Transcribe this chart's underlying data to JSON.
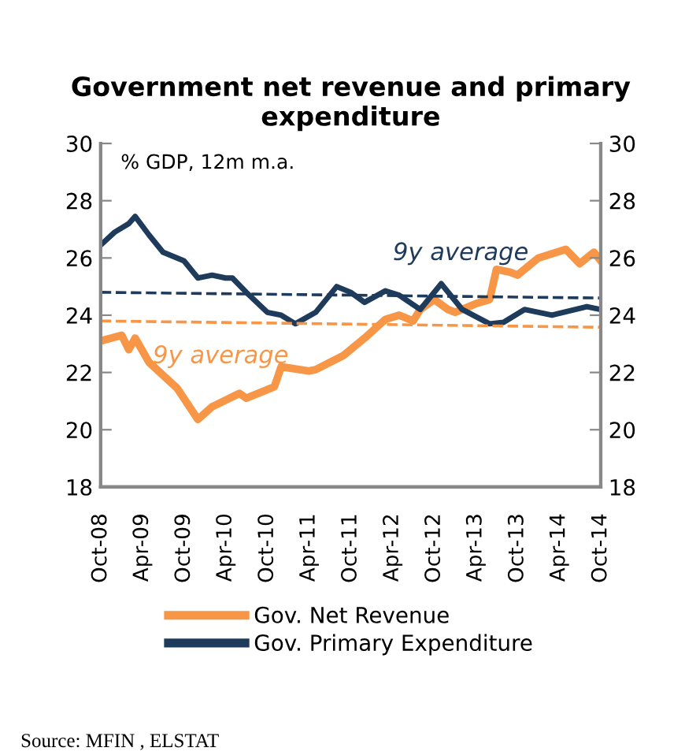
{
  "chart_data": {
    "type": "line",
    "title": "Government net revenue and primary expenditure",
    "series": [
      {
        "name": "Gov. Net Revenue",
        "color": "#f79646",
        "x": [
          "2008-10",
          "2009-01",
          "2009-02",
          "2009-03",
          "2009-05",
          "2009-09",
          "2009-12",
          "2010-02",
          "2010-06",
          "2010-07",
          "2010-11",
          "2010-12",
          "2011-04",
          "2011-05",
          "2011-09",
          "2011-12",
          "2012-03",
          "2012-05",
          "2012-07",
          "2012-08",
          "2012-10",
          "2012-12",
          "2013-01",
          "2013-04",
          "2013-06",
          "2013-07",
          "2013-09",
          "2013-10",
          "2014-01",
          "2014-05",
          "2014-07",
          "2014-09",
          "2014-10"
        ],
        "values": [
          23.1,
          23.3,
          22.8,
          23.2,
          22.35,
          21.45,
          20.36,
          20.8,
          21.27,
          21.1,
          21.5,
          22.2,
          22.05,
          22.1,
          22.6,
          23.2,
          23.85,
          24.0,
          23.8,
          24.2,
          24.55,
          24.2,
          24.1,
          24.4,
          24.55,
          25.6,
          25.5,
          25.4,
          26.0,
          26.3,
          25.8,
          26.2,
          25.9
        ]
      },
      {
        "name": "Gov. Primary Expenditure",
        "color": "#1f3b5c",
        "x": [
          "2008-10",
          "2008-12",
          "2009-02",
          "2009-03",
          "2009-05",
          "2009-07",
          "2009-10",
          "2009-12",
          "2010-02",
          "2010-04",
          "2010-05",
          "2010-07",
          "2010-10",
          "2010-12",
          "2011-02",
          "2011-05",
          "2011-08",
          "2011-10",
          "2011-12",
          "2012-03",
          "2012-05",
          "2012-08",
          "2012-11",
          "2013-02",
          "2013-06",
          "2013-08",
          "2013-11",
          "2014-03",
          "2014-08",
          "2014-10"
        ],
        "values": [
          26.45,
          26.9,
          27.2,
          27.45,
          26.8,
          26.2,
          25.9,
          25.3,
          25.4,
          25.3,
          25.3,
          24.8,
          24.1,
          24.0,
          23.7,
          24.1,
          25.0,
          24.8,
          24.45,
          24.85,
          24.7,
          24.2,
          25.1,
          24.2,
          23.7,
          23.75,
          24.2,
          24.0,
          24.3,
          24.2
        ]
      },
      {
        "color": "#1f3b5c",
        "line_style": "dashed",
        "x": [
          "2008-10",
          "2014-10"
        ],
        "values": [
          24.8,
          24.6
        ]
      },
      {
        "color": "#f79646",
        "line_style": "dashed",
        "x": [
          "2008-10",
          "2014-10"
        ],
        "values": [
          23.8,
          23.58
        ]
      }
    ],
    "xlim": [
      "2008-10",
      "2014-10"
    ],
    "xticks": [
      {
        "value": "2008-10",
        "label": "Oct-08"
      },
      {
        "value": "2009-04",
        "label": "Apr-09"
      },
      {
        "value": "2009-10",
        "label": "Oct-09"
      },
      {
        "value": "2010-04",
        "label": "Apr-10"
      },
      {
        "value": "2010-10",
        "label": "Oct-10"
      },
      {
        "value": "2011-04",
        "label": "Apr-11"
      },
      {
        "value": "2011-10",
        "label": "Oct-11"
      },
      {
        "value": "2012-04",
        "label": "Apr-12"
      },
      {
        "value": "2012-10",
        "label": "Oct-12"
      },
      {
        "value": "2013-04",
        "label": "Apr-13"
      },
      {
        "value": "2013-10",
        "label": "Oct-13"
      },
      {
        "value": "2014-04",
        "label": "Apr-14"
      },
      {
        "value": "2014-10",
        "label": "Oct-14"
      }
    ],
    "ylim": [
      18,
      30
    ],
    "yticks": [
      18,
      20,
      22,
      24,
      26,
      28,
      30
    ],
    "y2lim": [
      18,
      30
    ],
    "y2ticks": [
      18,
      20,
      22,
      24,
      26,
      28,
      30
    ],
    "grid": false,
    "legend": "bottom",
    "annotations": [
      "% GDP, 12m m.a.",
      "Source: MFIN , ELSTAT",
      "9y average",
      "9y average"
    ]
  }
}
